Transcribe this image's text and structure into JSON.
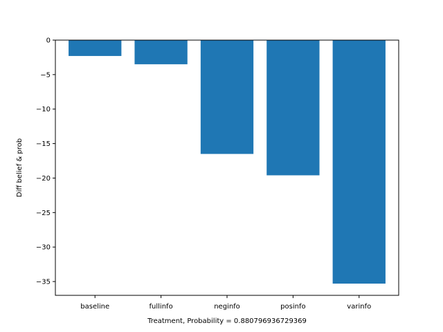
{
  "chart_data": {
    "type": "bar",
    "title": "",
    "xlabel": "Treatment, Probability = 0.880796936729369",
    "ylabel": "Diff belief & prob",
    "categories": [
      "baseline",
      "fullinfo",
      "neginfo",
      "posinfo",
      "varinfo"
    ],
    "values": [
      -2.3,
      -3.5,
      -16.5,
      -19.6,
      -35.3
    ],
    "ylim": [
      -37,
      0
    ],
    "yticks": [
      0,
      -5,
      -10,
      -15,
      -20,
      -25,
      -30,
      -35
    ],
    "ytick_labels": [
      "0",
      "−5",
      "−10",
      "−15",
      "−20",
      "−25",
      "−30",
      "−35"
    ],
    "bar_color": "#1f77b4",
    "grid": false,
    "legend": "none"
  }
}
